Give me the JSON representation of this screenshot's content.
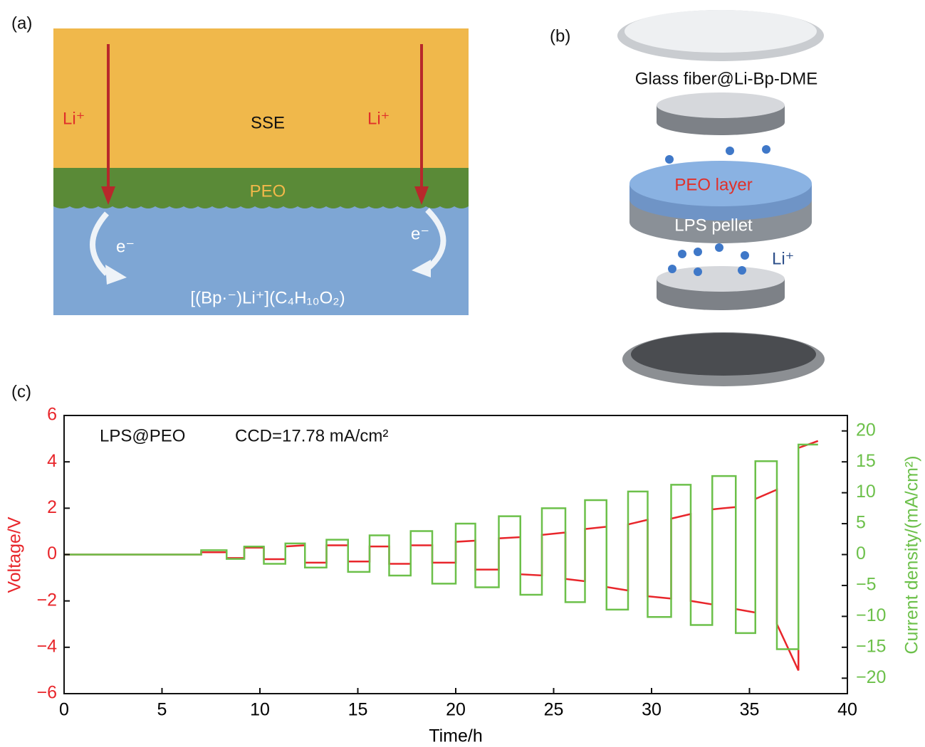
{
  "panel_a": {
    "label": "(a)",
    "sse": "SSE",
    "peo": "PEO",
    "li_left": "Li⁺",
    "li_right": "Li⁺",
    "e_left": "e⁻",
    "e_right": "e⁻",
    "formula": "[(Bp·⁻)Li⁺](C₄H₁₀O₂)"
  },
  "panel_b": {
    "label": "(b)",
    "glass_fiber": "Glass fiber@Li-Bp-DME",
    "peo_layer": "PEO layer",
    "lps_pellet": "LPS pellet",
    "li": "Li⁺"
  },
  "chart_data": {
    "type": "line",
    "panel_label": "(c)",
    "x_label": "Time/h",
    "y_label": "Voltage/V",
    "y2_label": "Current density/(mA/cm²)",
    "annotations": [
      "LPS@PEO",
      "CCD=17.78 mA/cm²"
    ],
    "x": [
      0,
      7,
      7,
      8.3,
      8.3,
      9.2,
      9.2,
      10.2,
      10.2,
      11.3,
      11.3,
      12.3,
      12.3,
      13.4,
      13.4,
      14.5,
      14.5,
      15.6,
      15.6,
      16.6,
      16.6,
      17.7,
      17.7,
      18.8,
      18.8,
      20,
      20,
      21,
      21,
      22.2,
      22.2,
      23.3,
      23.3,
      24.4,
      24.4,
      25.6,
      25.6,
      26.6,
      26.6,
      27.7,
      27.7,
      28.8,
      28.8,
      29.8,
      29.8,
      31,
      31,
      32,
      32,
      33.1,
      33.1,
      34.3,
      34.3,
      35.3,
      35.3,
      36.4,
      36.4,
      37.5,
      37.5,
      38.5
    ],
    "series": [
      {
        "color": "#e8262b",
        "values": [
          0,
          0,
          0.1,
          0.1,
          -0.15,
          -0.15,
          0.3,
          0.3,
          -0.2,
          -0.2,
          0.35,
          0.4,
          -0.35,
          -0.35,
          0.4,
          0.4,
          -0.3,
          -0.3,
          0.35,
          0.35,
          -0.4,
          -0.4,
          0.4,
          0.4,
          -0.35,
          -0.35,
          0.55,
          0.6,
          -0.65,
          -0.65,
          0.7,
          0.75,
          -0.85,
          -0.9,
          0.85,
          0.95,
          -1.05,
          -1.15,
          1.1,
          1.2,
          -1.4,
          -1.55,
          1.3,
          1.5,
          -1.8,
          -1.9,
          1.55,
          1.75,
          -2,
          -2.15,
          1.95,
          2.05,
          -2.35,
          -2.5,
          2.4,
          2.8,
          -3,
          -5,
          4.6,
          4.9
        ]
      },
      {
        "color": "#6cc04a",
        "axis": "y2",
        "values": [
          0,
          0,
          0.7,
          0.7,
          -0.7,
          -0.7,
          1.3,
          1.3,
          -1.5,
          -1.5,
          1.8,
          1.8,
          -2.1,
          -2.1,
          2.4,
          2.4,
          -2.8,
          -2.8,
          3.1,
          3.1,
          -3.4,
          -3.4,
          3.8,
          3.8,
          -4.7,
          -4.7,
          5,
          5,
          -5.3,
          -5.3,
          6.2,
          6.2,
          -6.5,
          -6.5,
          7.5,
          7.5,
          -7.7,
          -7.7,
          8.8,
          8.8,
          -8.9,
          -8.9,
          10.2,
          10.2,
          -10.1,
          -10.1,
          11.3,
          11.3,
          -11.4,
          -11.4,
          12.7,
          12.7,
          -12.7,
          -12.7,
          15.1,
          15.1,
          -15.3,
          -15.3,
          17.8,
          17.8
        ]
      }
    ],
    "xlim": [
      0,
      40
    ],
    "xticks": [
      0,
      5,
      10,
      15,
      20,
      25,
      30,
      35,
      40
    ],
    "ylim": [
      -6,
      6
    ],
    "yticks": [
      {
        "value": -6,
        "label": "−6"
      },
      {
        "value": -4,
        "label": "−4"
      },
      {
        "value": -2,
        "label": "−2"
      },
      0,
      2,
      4,
      6
    ],
    "y2lim": [
      -22.5,
      22.5
    ],
    "y2ticks": [
      {
        "value": -20,
        "label": "−20"
      },
      {
        "value": -15,
        "label": "−15"
      },
      {
        "value": -10,
        "label": "−10"
      },
      {
        "value": -5,
        "label": "−5"
      },
      0,
      5,
      10,
      15,
      20
    ],
    "y_color": "#e8262b",
    "y2_color": "#6cc04a"
  }
}
